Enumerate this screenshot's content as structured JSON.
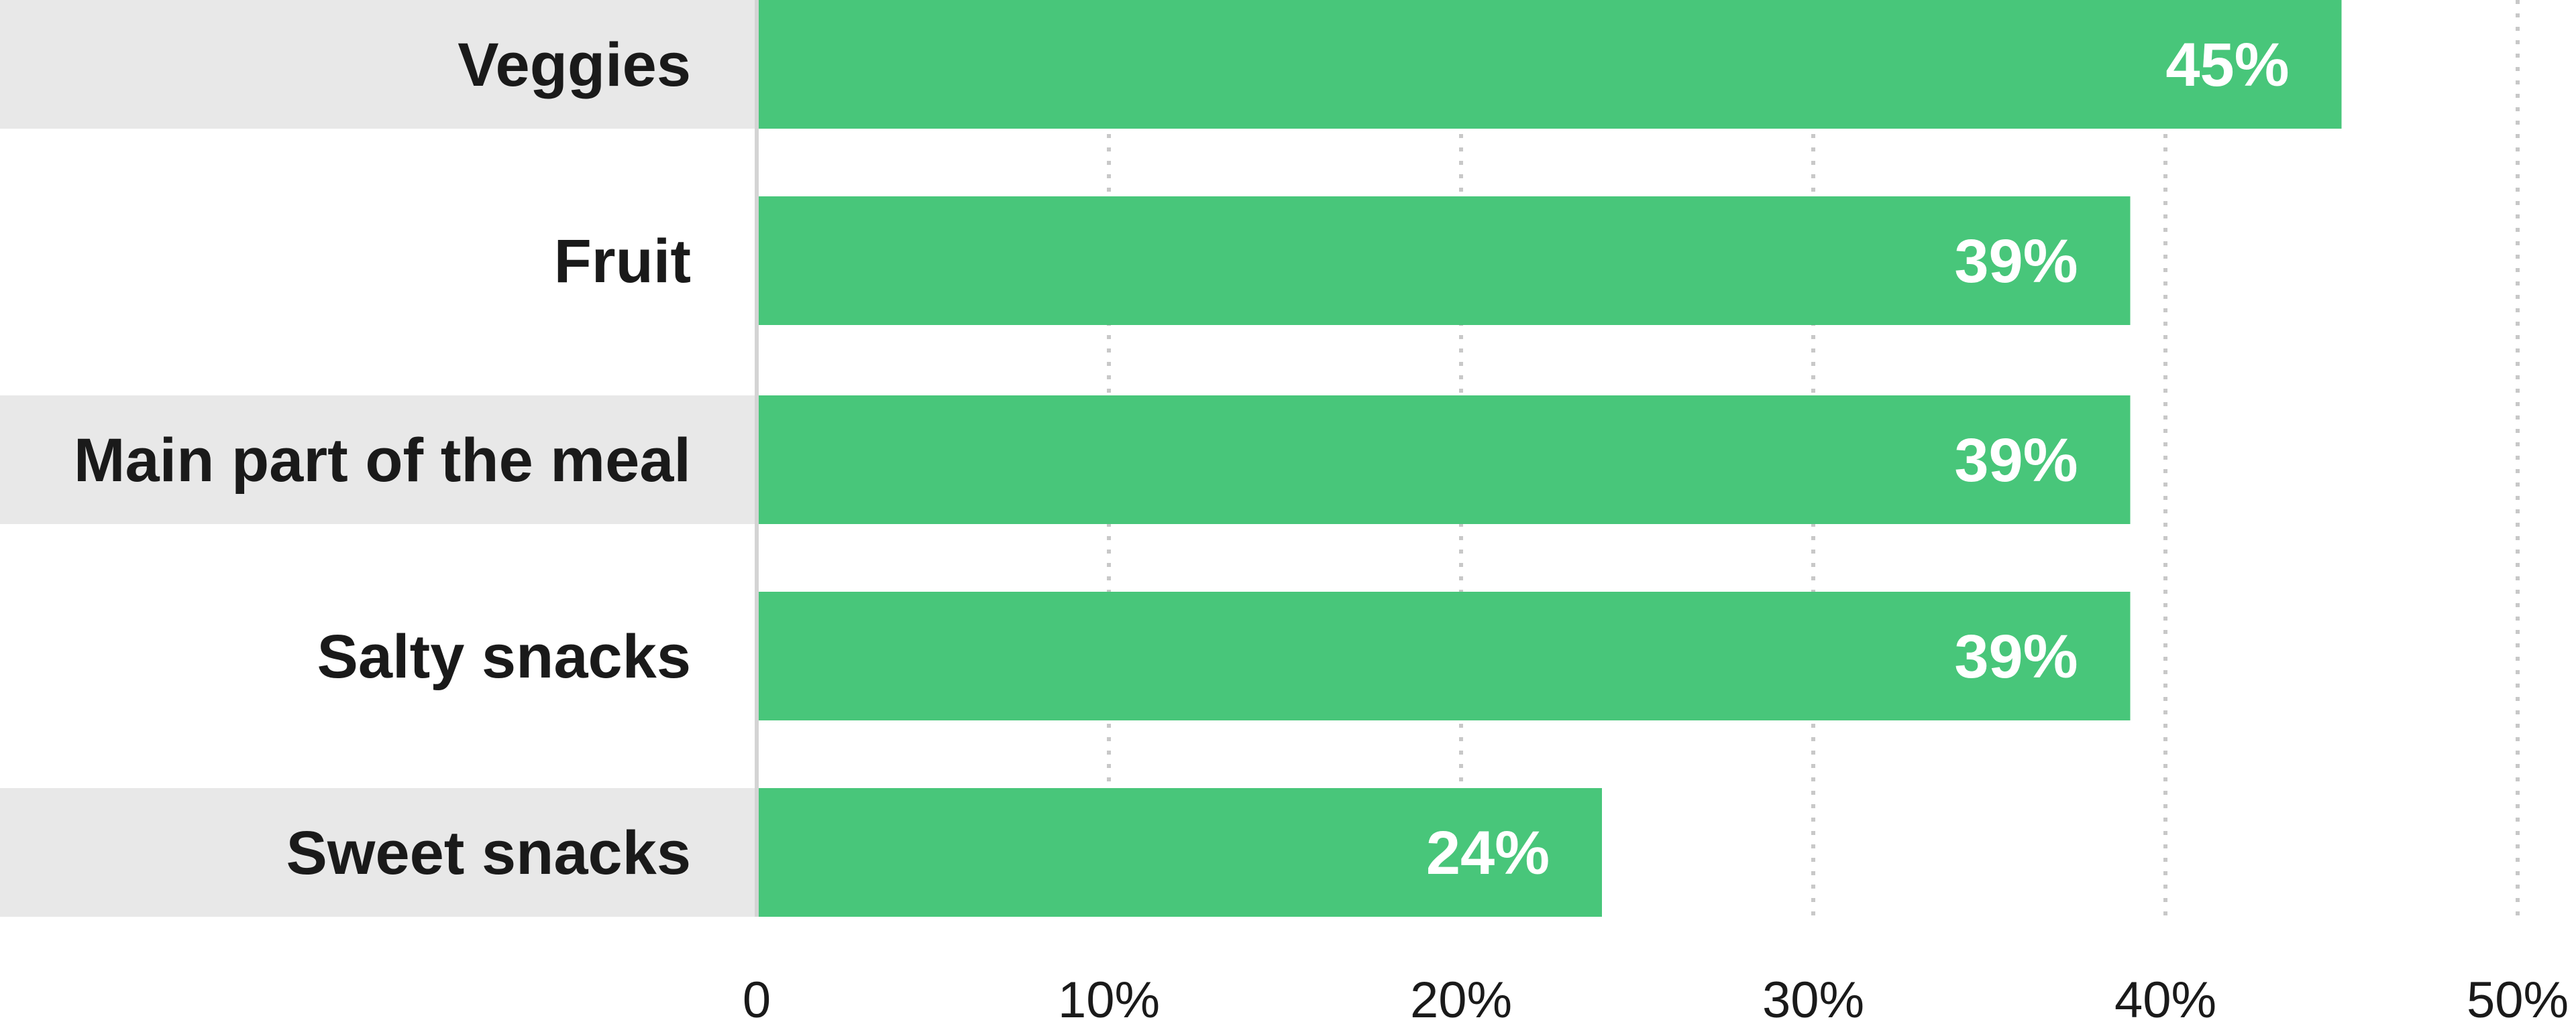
{
  "chart_data": {
    "type": "bar",
    "orientation": "horizontal",
    "categories": [
      "Veggies",
      "Fruit",
      "Main part of the meal",
      "Salty snacks",
      "Sweet snacks"
    ],
    "values": [
      45,
      39,
      39,
      39,
      24
    ],
    "value_labels": [
      "45%",
      "39%",
      "39%",
      "39%",
      "24%"
    ],
    "xlim": [
      0,
      50
    ],
    "x_ticks": [
      0,
      10,
      20,
      30,
      40,
      50
    ],
    "x_tick_labels": [
      "0",
      "10%",
      "20%",
      "30%",
      "40%",
      "50%"
    ],
    "grid": "vertical dotted",
    "legend": "none",
    "colors": {
      "bar": "#48c67a",
      "row_band": "#e8e8e8",
      "grid": "#c8c8c8",
      "axis": "#d4d4d4"
    }
  }
}
